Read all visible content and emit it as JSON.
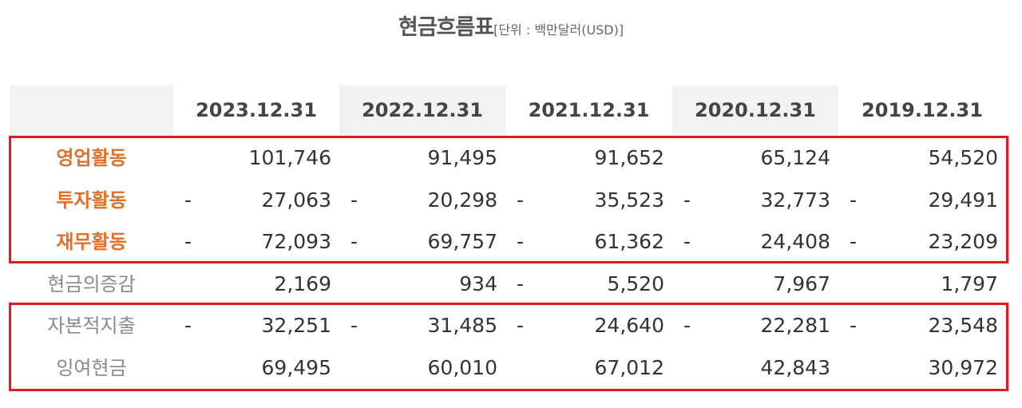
{
  "header": {
    "title": "현금흐름표",
    "unit": "[단위 : 백만달러(USD)]"
  },
  "table": {
    "columns": [
      "2023.12.31",
      "2022.12.31",
      "2021.12.31",
      "2020.12.31",
      "2019.12.31"
    ],
    "rows": [
      {
        "label": "영업활동",
        "cells": [
          "101,746",
          "91,495",
          "91,652",
          "65,124",
          "54,520"
        ]
      },
      {
        "label": "투자활동",
        "cells": [
          {
            "sign": "-",
            "amount": "27,063"
          },
          {
            "sign": "-",
            "amount": "20,298"
          },
          {
            "sign": "-",
            "amount": "35,523"
          },
          {
            "sign": "-",
            "amount": "32,773"
          },
          {
            "sign": "-",
            "amount": "29,491"
          }
        ]
      },
      {
        "label": "재무활동",
        "cells": [
          {
            "sign": "-",
            "amount": "72,093"
          },
          {
            "sign": "-",
            "amount": "69,757"
          },
          {
            "sign": "-",
            "amount": "61,362"
          },
          {
            "sign": "-",
            "amount": "24,408"
          },
          {
            "sign": "-",
            "amount": "23,209"
          }
        ]
      },
      {
        "label": "현금의증감",
        "cells": [
          "2,169",
          "934",
          {
            "sign": "-",
            "amount": "5,520"
          },
          "7,967",
          "1,797"
        ]
      },
      {
        "label": "자본적지출",
        "cells": [
          {
            "sign": "-",
            "amount": "32,251"
          },
          {
            "sign": "-",
            "amount": "31,485"
          },
          {
            "sign": "-",
            "amount": "24,640"
          },
          {
            "sign": "-",
            "amount": "22,281"
          },
          {
            "sign": "-",
            "amount": "23,548"
          }
        ]
      },
      {
        "label": "잉여현금",
        "cells": [
          "69,495",
          "60,010",
          "67,012",
          "42,843",
          "30,972"
        ]
      }
    ]
  }
}
